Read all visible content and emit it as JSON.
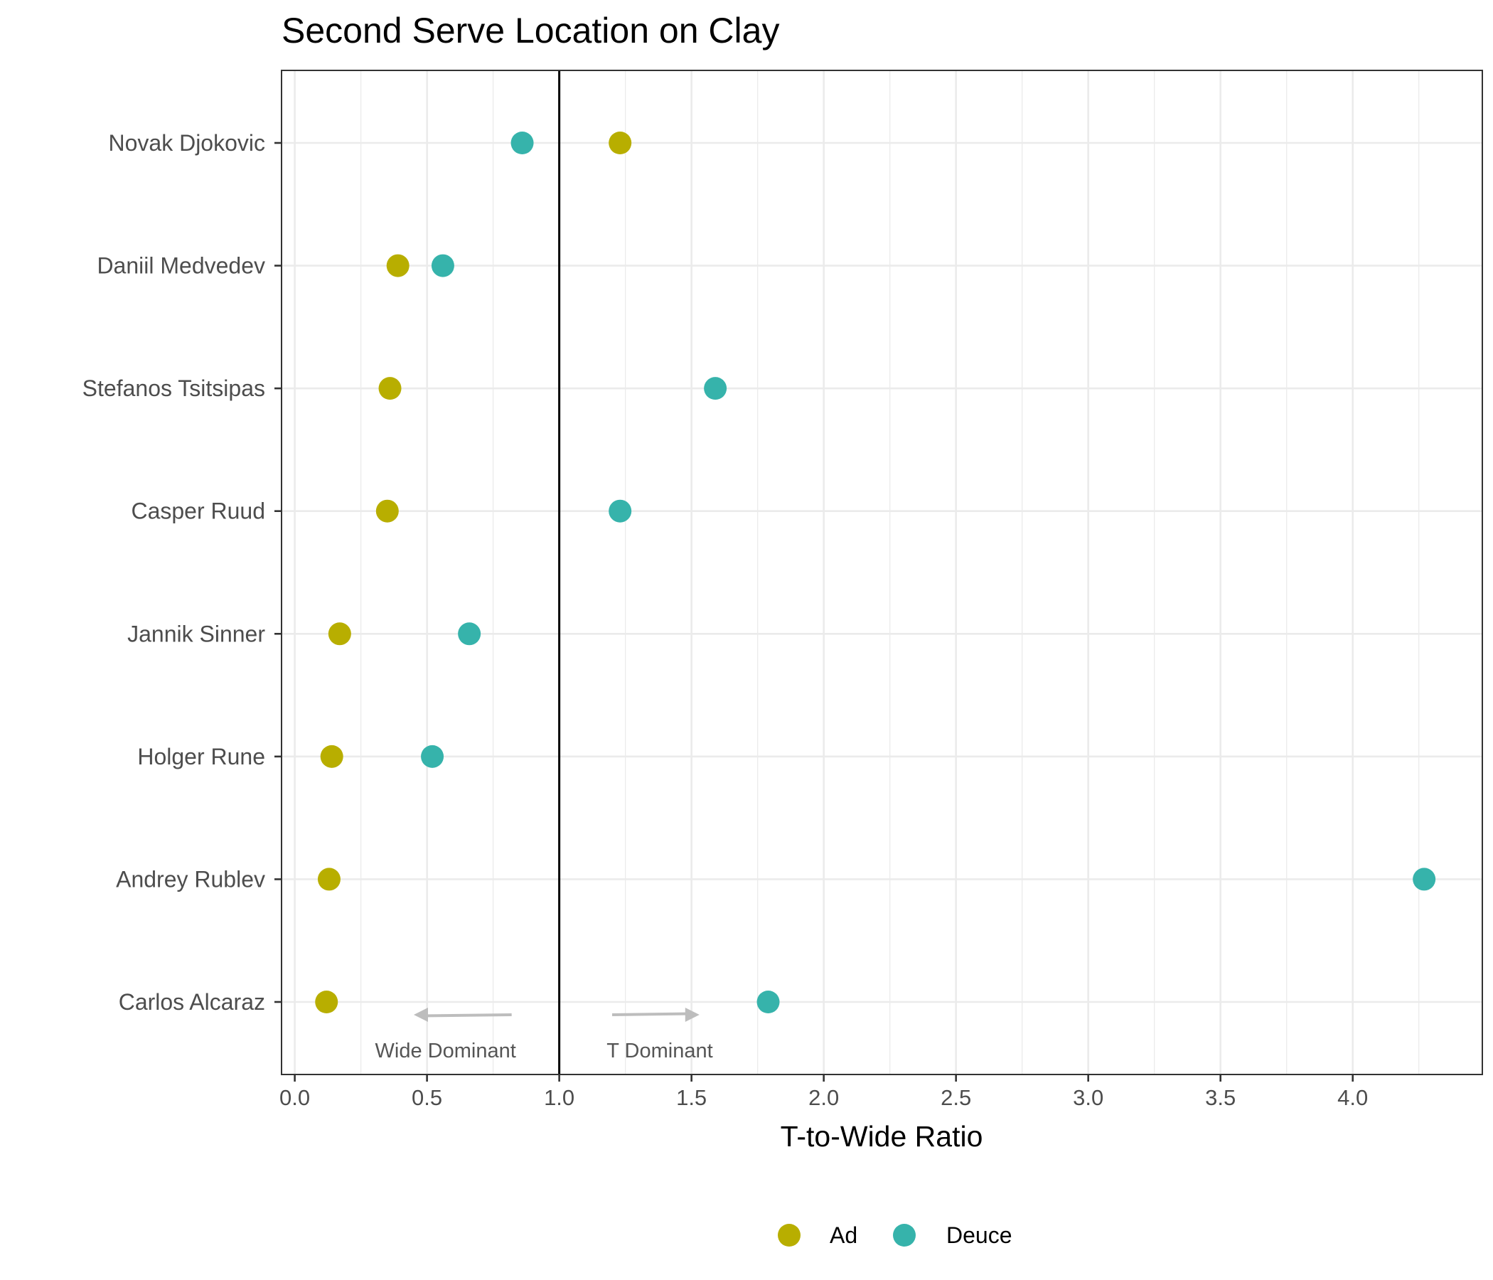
{
  "chart_data": {
    "type": "scatter",
    "title": "Second Serve Location on Clay",
    "xlabel": "T-to-Wide Ratio",
    "ylabel": "",
    "xlim": [
      -0.05,
      4.49
    ],
    "xticks": [
      "0.0",
      "0.5",
      "1.0",
      "1.5",
      "2.0",
      "2.5",
      "3.0",
      "3.5",
      "4.0"
    ],
    "reference_line_x": 1.0,
    "grid": true,
    "legend_position": "bottom",
    "categories": [
      "Novak Djokovic",
      "Daniil Medvedev",
      "Stefanos Tsitsipas",
      "Casper Ruud",
      "Jannik Sinner",
      "Holger Rune",
      "Andrey Rublev",
      "Carlos Alcaraz"
    ],
    "series": [
      {
        "name": "Ad",
        "color": "#b8ae00",
        "values": [
          1.23,
          0.39,
          0.36,
          0.35,
          0.17,
          0.14,
          0.13,
          0.12
        ]
      },
      {
        "name": "Deuce",
        "color": "#36b3ab",
        "values": [
          0.86,
          0.56,
          1.59,
          1.23,
          0.66,
          0.52,
          4.27,
          1.79
        ]
      }
    ],
    "annotations": [
      {
        "text": "Wide Dominant",
        "x": 0.57,
        "direction": "left",
        "x_from": 0.82,
        "x_to": 0.45
      },
      {
        "text": "T Dominant",
        "x": 1.38,
        "direction": "right",
        "x_from": 1.2,
        "x_to": 1.53
      }
    ]
  }
}
